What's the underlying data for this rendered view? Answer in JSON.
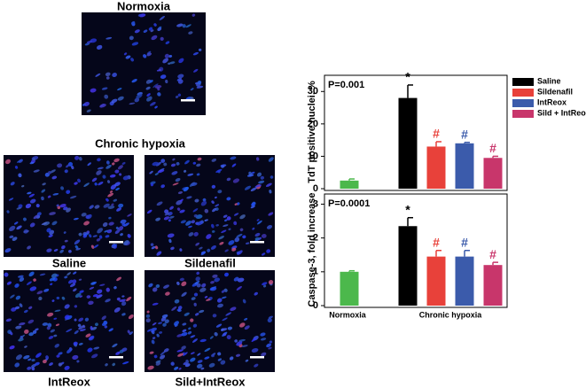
{
  "images": {
    "normoxia_title": "Normoxia",
    "hypoxia_title": "Chronic hypoxia",
    "panels": [
      "Saline",
      "Sildenafil",
      "IntReox",
      "Sild+IntReox"
    ]
  },
  "chart_data": [
    {
      "type": "bar",
      "ylabel": "TdT positive nuclei, %",
      "annotation": "P=0.001",
      "ylim": [
        0,
        35
      ],
      "yticks": [
        0,
        10,
        20,
        30
      ],
      "values": [
        2.5,
        28,
        13,
        14,
        9.5
      ],
      "errors": [
        0.5,
        4,
        1.5,
        0.3,
        0.5
      ],
      "colors": [
        "#4cb84c",
        "#000000",
        "#e8413a",
        "#3b5bab",
        "#c8366b"
      ],
      "markers": [
        null,
        "*",
        "#",
        "#",
        "#"
      ],
      "legend": [
        {
          "name": "Saline",
          "color": "#000000"
        },
        {
          "name": "Sildenafil",
          "color": "#e8413a"
        },
        {
          "name": "IntReox",
          "color": "#3b5bab"
        },
        {
          "name": "Sild + IntReox",
          "color": "#c8366b"
        }
      ]
    },
    {
      "type": "bar",
      "ylabel": "Caspase-3, fold increase",
      "annotation": "P=0.0001",
      "ylim": [
        0,
        3.3
      ],
      "yticks": [
        0,
        1,
        2,
        3
      ],
      "values": [
        1.0,
        2.35,
        1.45,
        1.45,
        1.2
      ],
      "errors": [
        0.03,
        0.25,
        0.18,
        0.18,
        0.08
      ],
      "colors": [
        "#4cb84c",
        "#000000",
        "#e8413a",
        "#3b5bab",
        "#c8366b"
      ],
      "markers": [
        null,
        "*",
        "#",
        "#",
        "#"
      ],
      "groups": [
        "Normoxia",
        "Chronic hypoxia"
      ]
    }
  ]
}
